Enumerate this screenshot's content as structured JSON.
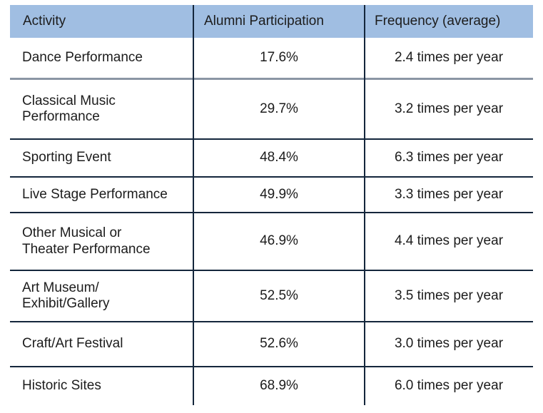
{
  "colors": {
    "header_bg": "#a0bee2",
    "divider_dark": "#14263c",
    "divider_gray": "#8b96a4",
    "text": "#1c1c1c"
  },
  "table": {
    "columns": [
      {
        "label": "Activity"
      },
      {
        "label": "Alumni Participation"
      },
      {
        "label": "Frequency (average)"
      }
    ],
    "rows": [
      {
        "activity": "Dance Performance",
        "participation": "17.6%",
        "frequency": "2.4 times per year"
      },
      {
        "activity": "Classical Music\nPerformance",
        "participation": "29.7%",
        "frequency": "3.2 times per year"
      },
      {
        "activity": "Sporting Event",
        "participation": "48.4%",
        "frequency": "6.3 times per year"
      },
      {
        "activity": "Live Stage Performance",
        "participation": "49.9%",
        "frequency": "3.3 times per year"
      },
      {
        "activity": "Other Musical or\nTheater Performance",
        "participation": "46.9%",
        "frequency": "4.4 times per year"
      },
      {
        "activity": "Art Museum/\nExhibit/Gallery",
        "participation": "52.5%",
        "frequency": "3.5 times per year"
      },
      {
        "activity": "Craft/Art Festival",
        "participation": "52.6%",
        "frequency": "3.0 times per year"
      },
      {
        "activity": "Historic Sites",
        "participation": "68.9%",
        "frequency": "6.0 times per year"
      }
    ]
  }
}
